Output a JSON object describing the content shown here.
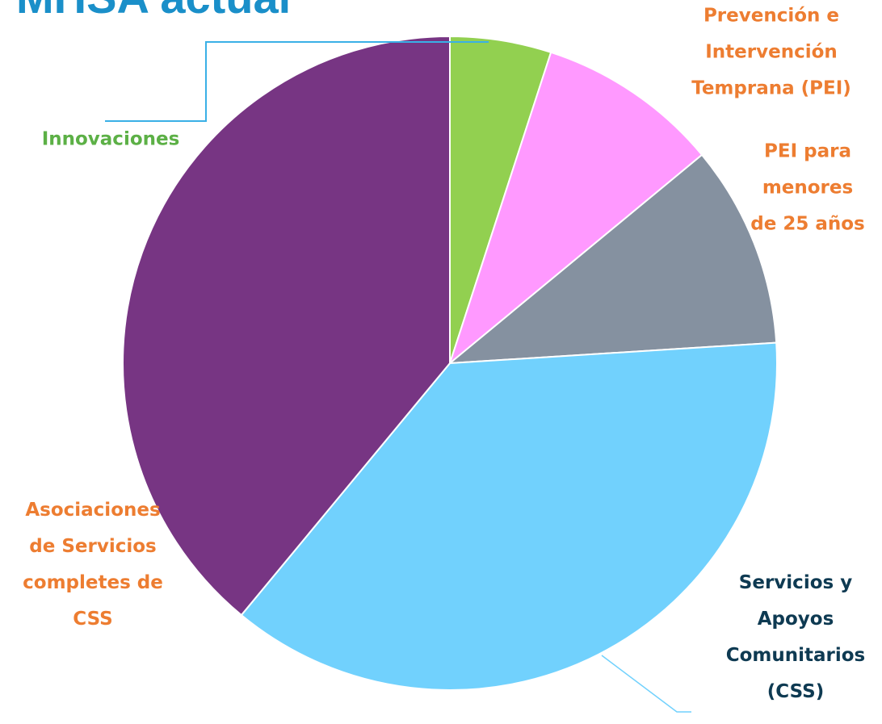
{
  "chart_data": {
    "type": "pie",
    "title": "MHSA actual",
    "categories": [
      "Innovaciones",
      "Prevención e Intervención Temprana (PEI)",
      "PEI para menores de 25 años",
      "Servicios y Apoyos Comunitarios (CSS)",
      "Asociaciones de Servicios completes de CSS"
    ],
    "values": [
      5,
      9,
      10,
      37,
      39
    ],
    "colors": [
      "#92d050",
      "#ff99ff",
      "#8591a0",
      "#71d1fd",
      "#773583"
    ],
    "label_colors": [
      "#5cb046",
      "#ed7d31",
      "#ed7d31",
      "#0e3a52",
      "#ed7d31"
    ]
  }
}
